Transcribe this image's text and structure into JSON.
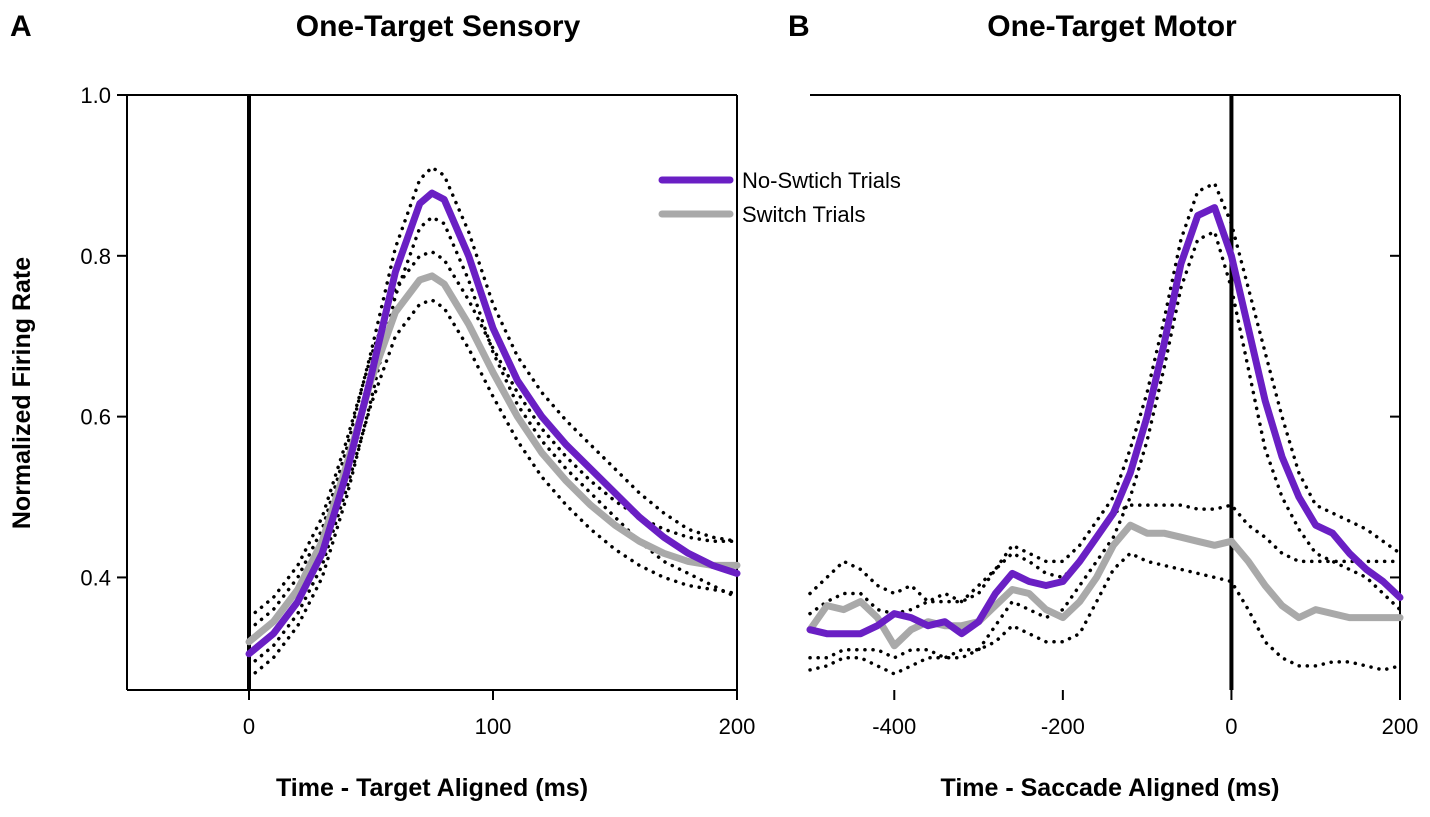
{
  "chart_data": [
    {
      "type": "line",
      "panel_letter": "A",
      "title": "One-Target Sensory",
      "xlabel": "Time - Target Aligned (ms)",
      "ylabel": "Normalized Firing Rate",
      "xlim": [
        -50,
        200
      ],
      "ylim": [
        0.26,
        1.0
      ],
      "xticks": [
        0,
        100,
        200
      ],
      "yticks": [
        0.4,
        0.6,
        0.8,
        1.0
      ],
      "ytick_labels": [
        "0.4",
        "0.6",
        "0.8",
        "1.0"
      ],
      "vline_x": 0,
      "series": [
        {
          "name": "No-Swtich Trials",
          "role": "mean",
          "color": "#6a1fc4",
          "x": [
            0,
            10,
            20,
            30,
            40,
            50,
            60,
            70,
            75,
            80,
            90,
            100,
            110,
            120,
            130,
            140,
            150,
            160,
            170,
            180,
            190,
            200
          ],
          "y": [
            0.305,
            0.33,
            0.37,
            0.43,
            0.53,
            0.65,
            0.78,
            0.865,
            0.878,
            0.87,
            0.8,
            0.71,
            0.645,
            0.6,
            0.565,
            0.535,
            0.505,
            0.475,
            0.45,
            0.43,
            0.415,
            0.405
          ]
        },
        {
          "name": "No-Swtich upper",
          "role": "ci",
          "color": "#000000",
          "x": [
            0,
            10,
            20,
            30,
            40,
            50,
            60,
            70,
            75,
            80,
            90,
            100,
            110,
            120,
            130,
            140,
            150,
            160,
            170,
            180,
            190,
            200
          ],
          "y": [
            0.335,
            0.36,
            0.4,
            0.46,
            0.56,
            0.68,
            0.81,
            0.895,
            0.91,
            0.9,
            0.83,
            0.74,
            0.675,
            0.63,
            0.595,
            0.565,
            0.535,
            0.505,
            0.48,
            0.46,
            0.45,
            0.445
          ]
        },
        {
          "name": "No-Swtich lower",
          "role": "ci",
          "color": "#000000",
          "x": [
            0,
            10,
            20,
            30,
            40,
            50,
            60,
            70,
            75,
            80,
            90,
            100,
            110,
            120,
            130,
            140,
            150,
            160,
            170,
            180,
            190,
            200
          ],
          "y": [
            0.275,
            0.3,
            0.34,
            0.4,
            0.5,
            0.62,
            0.75,
            0.835,
            0.848,
            0.84,
            0.77,
            0.68,
            0.615,
            0.57,
            0.535,
            0.505,
            0.475,
            0.445,
            0.42,
            0.405,
            0.39,
            0.375
          ]
        },
        {
          "name": "Switch Trials",
          "role": "mean",
          "color": "#a9a9a9",
          "x": [
            0,
            10,
            20,
            30,
            40,
            50,
            60,
            70,
            75,
            80,
            90,
            100,
            110,
            120,
            130,
            140,
            150,
            160,
            170,
            180,
            190,
            200
          ],
          "y": [
            0.32,
            0.345,
            0.385,
            0.445,
            0.54,
            0.645,
            0.73,
            0.77,
            0.775,
            0.765,
            0.715,
            0.655,
            0.6,
            0.555,
            0.52,
            0.49,
            0.465,
            0.445,
            0.43,
            0.42,
            0.415,
            0.415
          ]
        },
        {
          "name": "Switch upper",
          "role": "ci",
          "color": "#000000",
          "x": [
            0,
            10,
            20,
            30,
            40,
            50,
            60,
            70,
            75,
            80,
            90,
            100,
            110,
            120,
            130,
            140,
            150,
            160,
            170,
            180,
            190,
            200
          ],
          "y": [
            0.35,
            0.375,
            0.415,
            0.475,
            0.57,
            0.675,
            0.76,
            0.8,
            0.805,
            0.795,
            0.745,
            0.685,
            0.63,
            0.585,
            0.55,
            0.52,
            0.495,
            0.475,
            0.46,
            0.45,
            0.445,
            0.445
          ]
        },
        {
          "name": "Switch lower",
          "role": "ci",
          "color": "#000000",
          "x": [
            0,
            10,
            20,
            30,
            40,
            50,
            60,
            70,
            75,
            80,
            90,
            100,
            110,
            120,
            130,
            140,
            150,
            160,
            170,
            180,
            190,
            200
          ],
          "y": [
            0.29,
            0.315,
            0.355,
            0.415,
            0.51,
            0.615,
            0.7,
            0.74,
            0.745,
            0.735,
            0.685,
            0.625,
            0.57,
            0.525,
            0.49,
            0.46,
            0.435,
            0.415,
            0.4,
            0.39,
            0.385,
            0.38
          ]
        }
      ],
      "legend": [
        {
          "label": "No-Swtich Trials",
          "color": "#6a1fc4"
        },
        {
          "label": "Switch Trials",
          "color": "#a9a9a9"
        }
      ]
    },
    {
      "type": "line",
      "panel_letter": "B",
      "title": "One-Target Motor",
      "xlabel": "Time - Saccade Aligned (ms)",
      "xlim": [
        -500,
        200
      ],
      "ylim": [
        0.26,
        1.0
      ],
      "xticks": [
        -400,
        -200,
        0,
        200
      ],
      "vline_x": 0,
      "series": [
        {
          "name": "No-Swtich Trials",
          "role": "mean",
          "color": "#6a1fc4",
          "x": [
            -500,
            -480,
            -460,
            -440,
            -420,
            -400,
            -380,
            -360,
            -340,
            -320,
            -300,
            -280,
            -260,
            -240,
            -220,
            -200,
            -180,
            -160,
            -140,
            -120,
            -100,
            -80,
            -60,
            -40,
            -20,
            0,
            20,
            40,
            60,
            80,
            100,
            120,
            140,
            160,
            180,
            200
          ],
          "y": [
            0.335,
            0.33,
            0.33,
            0.33,
            0.34,
            0.355,
            0.35,
            0.34,
            0.345,
            0.33,
            0.345,
            0.38,
            0.405,
            0.395,
            0.39,
            0.395,
            0.42,
            0.45,
            0.48,
            0.53,
            0.6,
            0.69,
            0.79,
            0.85,
            0.86,
            0.8,
            0.71,
            0.62,
            0.55,
            0.5,
            0.465,
            0.455,
            0.43,
            0.41,
            0.395,
            0.375
          ]
        },
        {
          "name": "No-Swtich upper",
          "role": "ci",
          "color": "#000000",
          "x": [
            -500,
            -480,
            -460,
            -440,
            -420,
            -400,
            -380,
            -360,
            -340,
            -320,
            -300,
            -280,
            -260,
            -240,
            -220,
            -200,
            -180,
            -160,
            -140,
            -120,
            -100,
            -80,
            -60,
            -40,
            -20,
            0,
            20,
            40,
            60,
            80,
            100,
            120,
            140,
            160,
            180,
            200
          ],
          "y": [
            0.38,
            0.4,
            0.42,
            0.41,
            0.39,
            0.38,
            0.39,
            0.37,
            0.38,
            0.37,
            0.39,
            0.41,
            0.44,
            0.43,
            0.42,
            0.42,
            0.44,
            0.47,
            0.5,
            0.56,
            0.63,
            0.72,
            0.82,
            0.88,
            0.89,
            0.84,
            0.76,
            0.68,
            0.6,
            0.53,
            0.49,
            0.48,
            0.47,
            0.46,
            0.445,
            0.43
          ]
        },
        {
          "name": "No-Swtich lower",
          "role": "ci",
          "color": "#000000",
          "x": [
            -500,
            -480,
            -460,
            -440,
            -420,
            -400,
            -380,
            -360,
            -340,
            -320,
            -300,
            -280,
            -260,
            -240,
            -220,
            -200,
            -180,
            -160,
            -140,
            -120,
            -100,
            -80,
            -60,
            -40,
            -20,
            0,
            20,
            40,
            60,
            80,
            100,
            120,
            140,
            160,
            180,
            200
          ],
          "y": [
            0.3,
            0.3,
            0.31,
            0.31,
            0.31,
            0.3,
            0.31,
            0.31,
            0.3,
            0.3,
            0.31,
            0.34,
            0.37,
            0.36,
            0.35,
            0.36,
            0.39,
            0.42,
            0.45,
            0.5,
            0.57,
            0.66,
            0.76,
            0.82,
            0.83,
            0.76,
            0.66,
            0.56,
            0.5,
            0.46,
            0.43,
            0.42,
            0.41,
            0.4,
            0.38,
            0.36
          ]
        },
        {
          "name": "Switch Trials",
          "role": "mean",
          "color": "#a9a9a9",
          "x": [
            -500,
            -480,
            -460,
            -440,
            -420,
            -400,
            -380,
            -360,
            -340,
            -320,
            -300,
            -280,
            -260,
            -240,
            -220,
            -200,
            -180,
            -160,
            -140,
            -120,
            -100,
            -80,
            -60,
            -40,
            -20,
            0,
            20,
            40,
            60,
            80,
            100,
            120,
            140,
            160,
            180,
            200
          ],
          "y": [
            0.335,
            0.365,
            0.36,
            0.37,
            0.35,
            0.315,
            0.335,
            0.345,
            0.34,
            0.34,
            0.345,
            0.365,
            0.385,
            0.38,
            0.36,
            0.35,
            0.37,
            0.4,
            0.44,
            0.465,
            0.455,
            0.455,
            0.45,
            0.445,
            0.44,
            0.445,
            0.42,
            0.39,
            0.365,
            0.35,
            0.36,
            0.355,
            0.35,
            0.35,
            0.35,
            0.35
          ]
        },
        {
          "name": "Switch upper",
          "role": "ci",
          "color": "#000000",
          "x": [
            -500,
            -480,
            -460,
            -440,
            -420,
            -400,
            -380,
            -360,
            -340,
            -320,
            -300,
            -280,
            -260,
            -240,
            -220,
            -200,
            -180,
            -160,
            -140,
            -120,
            -100,
            -80,
            -60,
            -40,
            -20,
            0,
            20,
            40,
            60,
            80,
            100,
            120,
            140,
            160,
            180,
            200
          ],
          "y": [
            0.355,
            0.37,
            0.38,
            0.38,
            0.36,
            0.355,
            0.36,
            0.37,
            0.37,
            0.37,
            0.38,
            0.41,
            0.43,
            0.42,
            0.405,
            0.4,
            0.42,
            0.45,
            0.48,
            0.49,
            0.49,
            0.49,
            0.49,
            0.485,
            0.485,
            0.49,
            0.465,
            0.45,
            0.43,
            0.42,
            0.42,
            0.42,
            0.42,
            0.42,
            0.42,
            0.42
          ]
        },
        {
          "name": "Switch lower",
          "role": "ci",
          "color": "#000000",
          "x": [
            -500,
            -480,
            -460,
            -440,
            -420,
            -400,
            -380,
            -360,
            -340,
            -320,
            -300,
            -280,
            -260,
            -240,
            -220,
            -200,
            -180,
            -160,
            -140,
            -120,
            -100,
            -80,
            -60,
            -40,
            -20,
            0,
            20,
            40,
            60,
            80,
            100,
            120,
            140,
            160,
            180,
            200
          ],
          "y": [
            0.285,
            0.29,
            0.3,
            0.3,
            0.29,
            0.28,
            0.29,
            0.3,
            0.3,
            0.31,
            0.31,
            0.32,
            0.34,
            0.33,
            0.32,
            0.32,
            0.33,
            0.37,
            0.41,
            0.43,
            0.42,
            0.415,
            0.41,
            0.405,
            0.4,
            0.395,
            0.36,
            0.32,
            0.3,
            0.29,
            0.29,
            0.295,
            0.295,
            0.29,
            0.285,
            0.29
          ]
        }
      ]
    }
  ]
}
